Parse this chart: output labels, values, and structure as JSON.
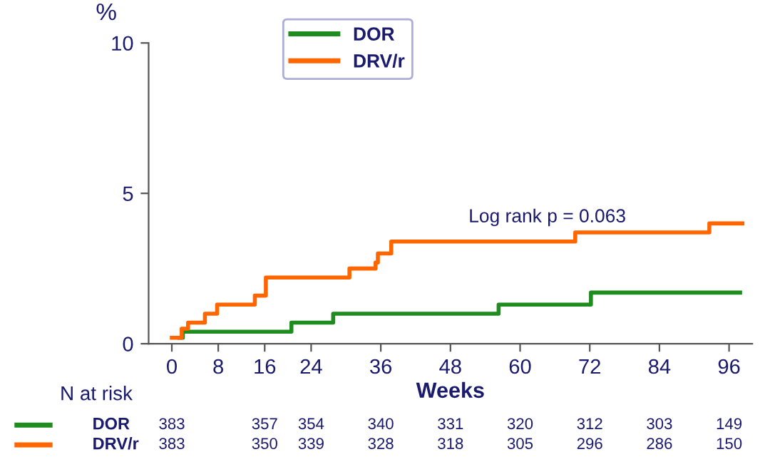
{
  "chart_data": {
    "type": "step",
    "xlabel": "Weeks",
    "ylabel": "%",
    "xlim": [
      -4,
      100
    ],
    "xticks": [
      0,
      8,
      16,
      24,
      36,
      48,
      60,
      72,
      84,
      96
    ],
    "ylim": [
      0,
      10
    ],
    "yticks": [
      0,
      5,
      10
    ],
    "legend": "top",
    "grid": false,
    "series": [
      {
        "name": "DOR",
        "color": "#1e8c1e",
        "x": [
          1.3,
          1.9,
          20.6,
          27.8,
          56.3,
          72.2,
          97.9
        ],
        "values": [
          0.2,
          0.4,
          0.7,
          1.0,
          1.3,
          1.7,
          1.7
        ]
      },
      {
        "name": "DRV/r",
        "color": "#ff6600",
        "x": [
          0,
          1.7,
          2.8,
          5.7,
          7.8,
          14.3,
          16.2,
          30.6,
          35.1,
          35.5,
          37.8,
          69.5,
          92.6,
          98.3
        ],
        "values": [
          0.2,
          0.5,
          0.7,
          1.0,
          1.3,
          1.6,
          2.2,
          2.5,
          2.7,
          3.0,
          3.4,
          3.7,
          4.0,
          4.0
        ]
      }
    ],
    "annotations": [
      "Log rank p = 0.063",
      "N at risk",
      "383",
      "357",
      "354",
      "340",
      "331",
      "320",
      "312",
      "303",
      "149",
      "383",
      "350",
      "339",
      "328",
      "318",
      "305",
      "296",
      "286",
      "150"
    ]
  }
}
